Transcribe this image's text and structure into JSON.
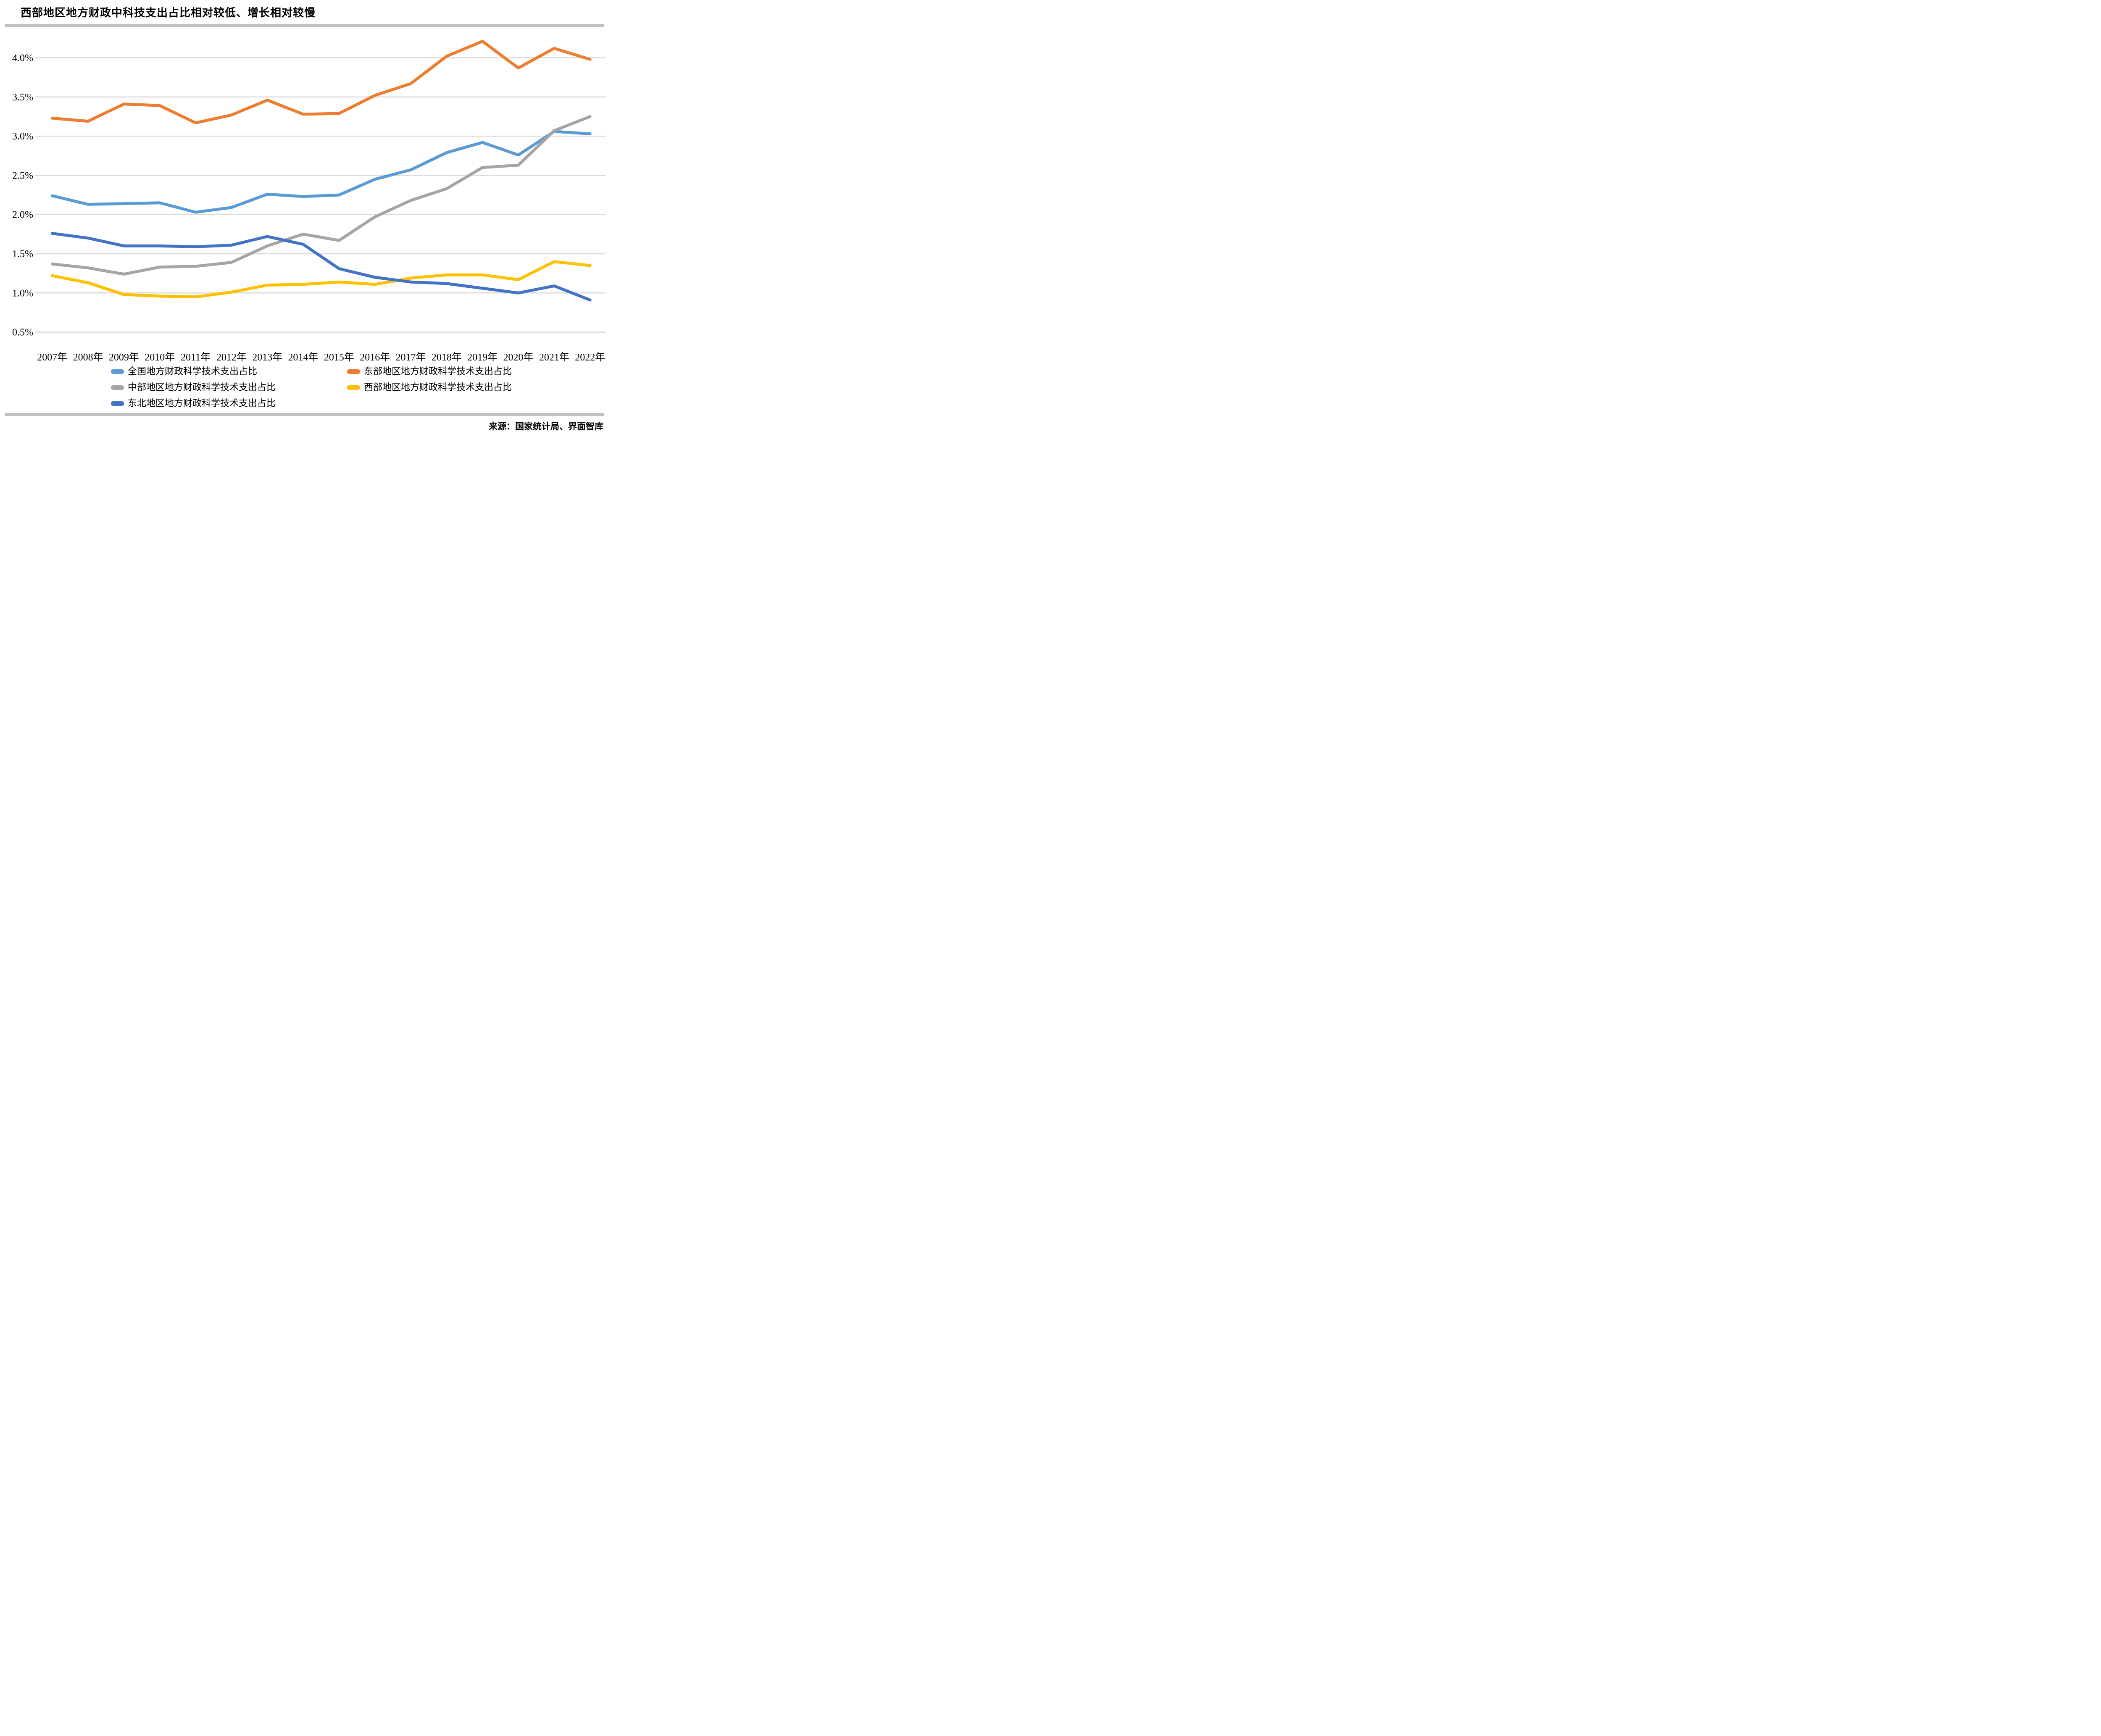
{
  "title": "西部地区地方财政中科技支出占比相对较低、增长相对较慢",
  "source": "来源：国家统计局、界面智库",
  "colors": {
    "background": "#ffffff",
    "gridline": "#d9d9d9",
    "rule_bar": "#bfbfbf",
    "text": "#000000"
  },
  "chart_data": {
    "type": "line",
    "title": "西部地区地方财政中科技支出占比相对较低、增长相对较慢",
    "categories": [
      "2007年",
      "2008年",
      "2009年",
      "2010年",
      "2011年",
      "2012年",
      "2013年",
      "2014年",
      "2015年",
      "2016年",
      "2017年",
      "2018年",
      "2019年",
      "2020年",
      "2021年",
      "2022年"
    ],
    "y_tick_labels": [
      "0.5%",
      "1.0%",
      "1.5%",
      "2.0%",
      "2.5%",
      "3.0%",
      "3.5%",
      "4.0%"
    ],
    "ylim": [
      0.5,
      4.35
    ],
    "grid": true,
    "legend_position": "bottom",
    "xlabel": "",
    "ylabel": "",
    "series": [
      {
        "id": "national",
        "name": "全国地方财政科学技术支出占比",
        "color": "#5b9bd5",
        "values": [
          2.24,
          2.13,
          2.14,
          2.15,
          2.03,
          2.09,
          2.26,
          2.23,
          2.25,
          2.45,
          2.57,
          2.79,
          2.92,
          2.76,
          3.06,
          3.03
        ]
      },
      {
        "id": "east",
        "name": "东部地区地方财政科学技术支出占比",
        "color": "#ed7d31",
        "values": [
          3.23,
          3.19,
          3.41,
          3.39,
          3.17,
          3.27,
          3.46,
          3.28,
          3.29,
          3.52,
          3.67,
          4.02,
          4.21,
          3.87,
          4.12,
          3.98
        ]
      },
      {
        "id": "central",
        "name": "中部地区地方财政科学技术支出占比",
        "color": "#a5a5a5",
        "values": [
          1.37,
          1.32,
          1.24,
          1.33,
          1.34,
          1.39,
          1.6,
          1.75,
          1.67,
          1.97,
          2.18,
          2.33,
          2.6,
          2.63,
          3.07,
          3.25
        ]
      },
      {
        "id": "west",
        "name": "西部地区地方财政科学技术支出占比",
        "color": "#ffc000",
        "values": [
          1.22,
          1.13,
          0.98,
          0.96,
          0.95,
          1.01,
          1.1,
          1.11,
          1.14,
          1.11,
          1.19,
          1.23,
          1.23,
          1.17,
          1.4,
          1.35
        ]
      },
      {
        "id": "northeast",
        "name": "东北地区地方财政科学技术支出占比",
        "color": "#4472c4",
        "values": [
          1.76,
          1.7,
          1.6,
          1.6,
          1.59,
          1.61,
          1.72,
          1.62,
          1.31,
          1.2,
          1.14,
          1.12,
          1.06,
          1.0,
          1.09,
          0.91
        ]
      }
    ]
  }
}
